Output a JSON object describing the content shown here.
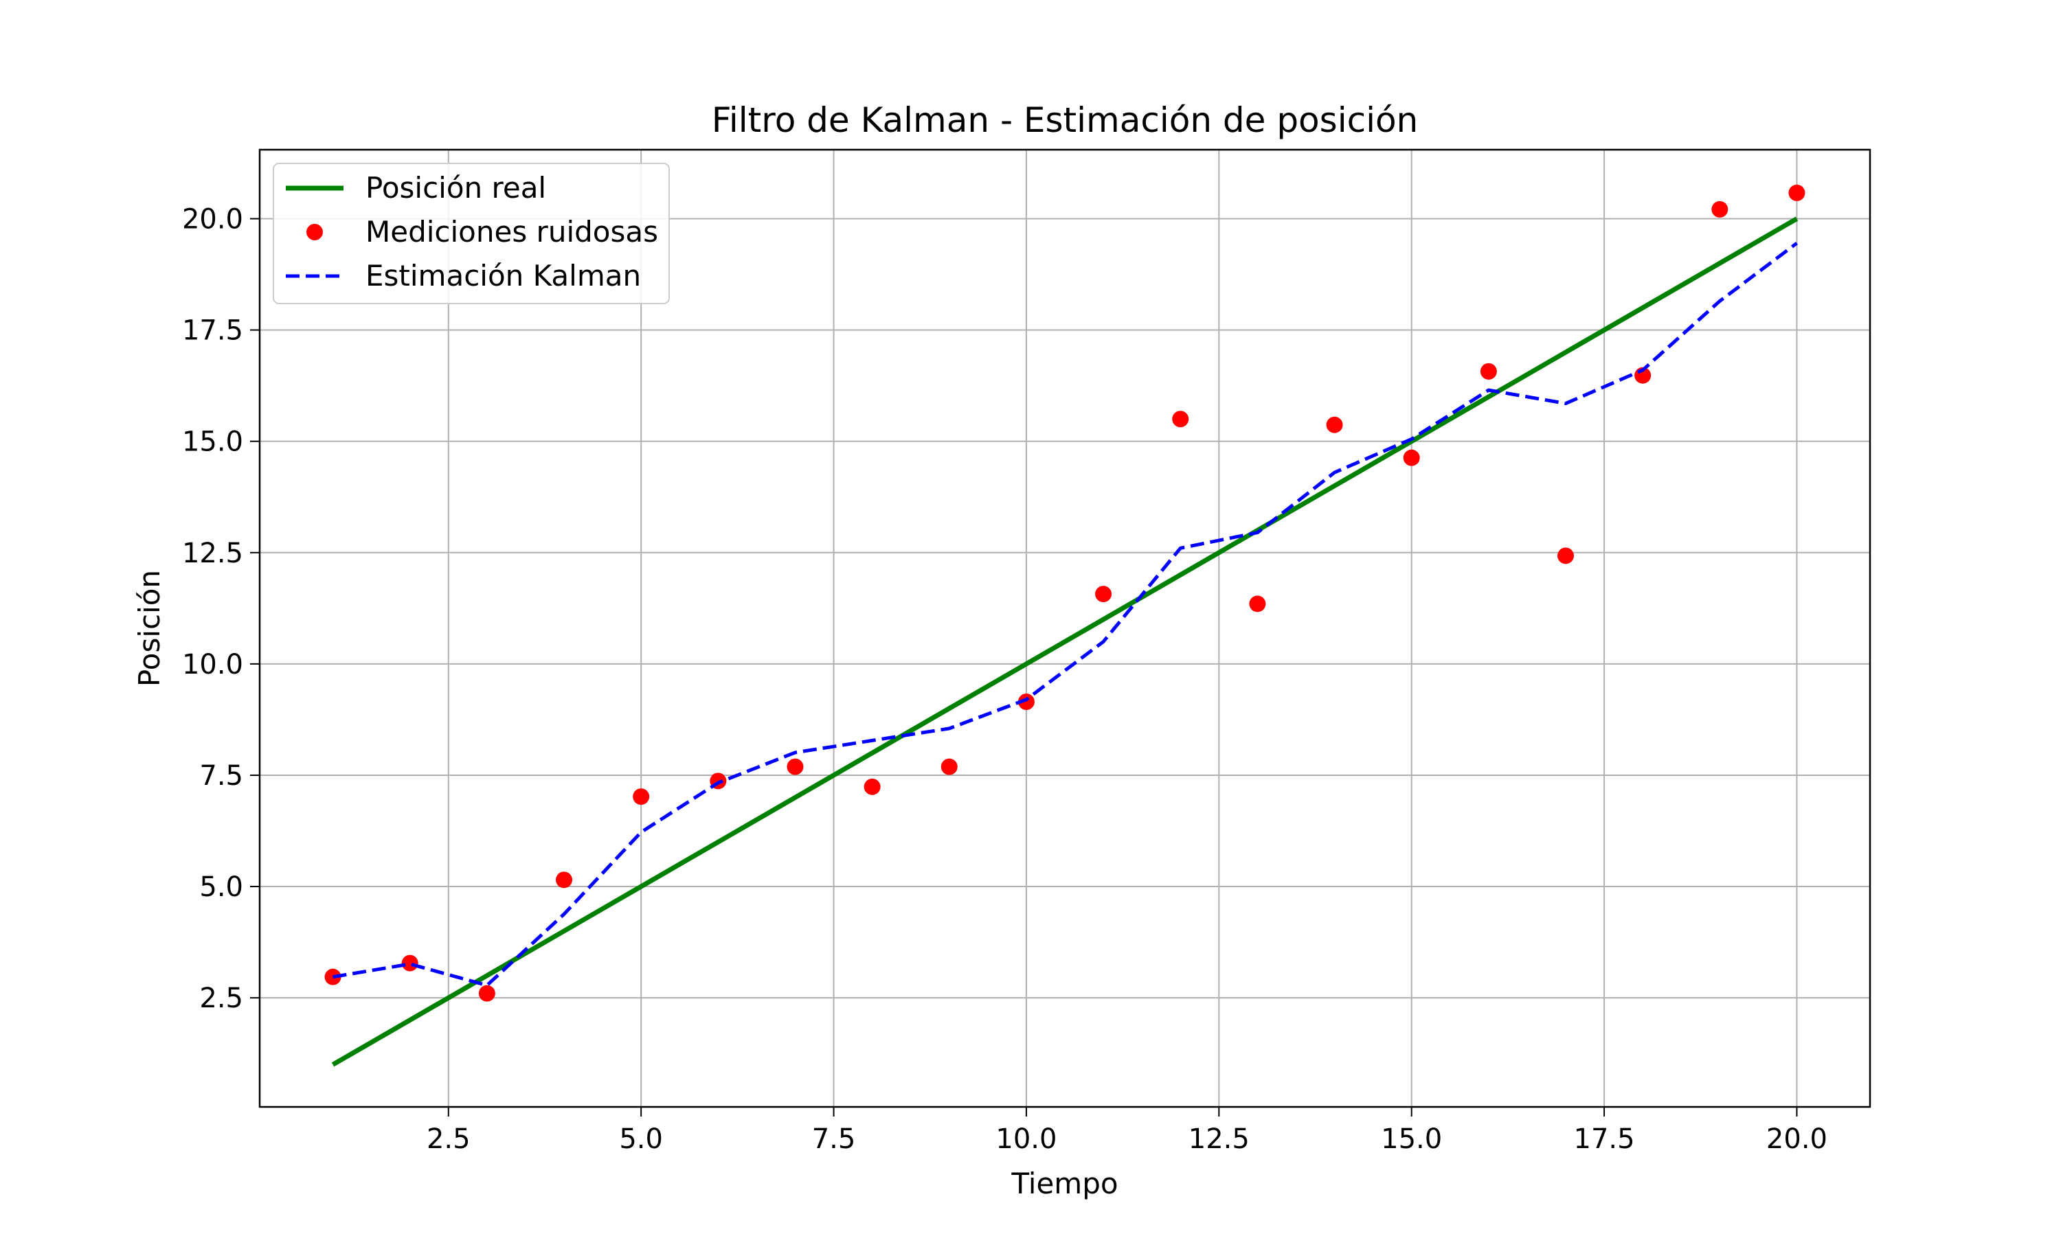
{
  "chart_data": {
    "type": "line",
    "title": "Filtro de Kalman - Estimación de posición",
    "xlabel": "Tiempo",
    "ylabel": "Posición",
    "xlim": [
      0.05,
      20.95
    ],
    "ylim": [
      0.05,
      21.55
    ],
    "xticks": [
      2.5,
      5.0,
      7.5,
      10.0,
      12.5,
      15.0,
      17.5,
      20.0
    ],
    "xtick_labels": [
      "2.5",
      "5.0",
      "7.5",
      "10.0",
      "12.5",
      "15.0",
      "17.5",
      "20.0"
    ],
    "yticks": [
      2.5,
      5.0,
      7.5,
      10.0,
      12.5,
      15.0,
      17.5,
      20.0
    ],
    "ytick_labels": [
      "2.5",
      "5.0",
      "7.5",
      "10.0",
      "12.5",
      "15.0",
      "17.5",
      "20.0"
    ],
    "grid": true,
    "legend_position": "upper-left",
    "x": [
      1,
      2,
      3,
      4,
      5,
      6,
      7,
      8,
      9,
      10,
      11,
      12,
      13,
      14,
      15,
      16,
      17,
      18,
      19,
      20
    ],
    "series": [
      {
        "name": "Posición real",
        "kind": "line",
        "color": "#008000",
        "values": [
          1,
          2,
          3,
          4,
          5,
          6,
          7,
          8,
          9,
          10,
          11,
          12,
          13,
          14,
          15,
          16,
          17,
          18,
          19,
          20
        ]
      },
      {
        "name": "Mediciones ruidosas",
        "kind": "scatter",
        "color": "#ff0000",
        "values": [
          2.97,
          3.28,
          2.6,
          5.15,
          7.02,
          7.37,
          7.69,
          7.24,
          7.69,
          9.15,
          11.57,
          15.5,
          11.35,
          15.37,
          14.63,
          16.57,
          12.43,
          16.48,
          20.21,
          20.58
        ]
      },
      {
        "name": "Estimación Kalman",
        "kind": "dashed-line",
        "color": "#0000ff",
        "values": [
          2.97,
          3.26,
          2.78,
          4.38,
          6.22,
          7.33,
          8.01,
          8.28,
          8.55,
          9.2,
          10.5,
          12.6,
          12.95,
          14.3,
          15.05,
          16.15,
          15.85,
          16.6,
          18.15,
          19.45
        ]
      }
    ]
  }
}
